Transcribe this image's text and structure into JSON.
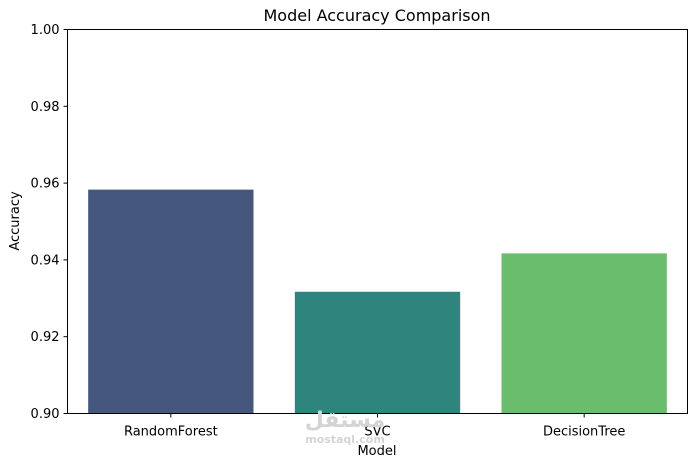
{
  "chart_data": {
    "type": "bar",
    "title": "Model Accuracy Comparison",
    "xlabel": "Model",
    "ylabel": "Accuracy",
    "categories": [
      "RandomForest",
      "SVC",
      "DecisionTree"
    ],
    "values": [
      0.9583,
      0.9317,
      0.9417
    ],
    "colors": [
      "#46577e",
      "#2e857e",
      "#6abd6d"
    ],
    "ylim": [
      0.9,
      1.0
    ],
    "yticks": [
      "0.90",
      "0.92",
      "0.94",
      "0.96",
      "0.98",
      "1.00"
    ],
    "grid": false,
    "legend": false
  },
  "watermark": {
    "text": "مستقل",
    "subtext": "mostaql.com"
  }
}
